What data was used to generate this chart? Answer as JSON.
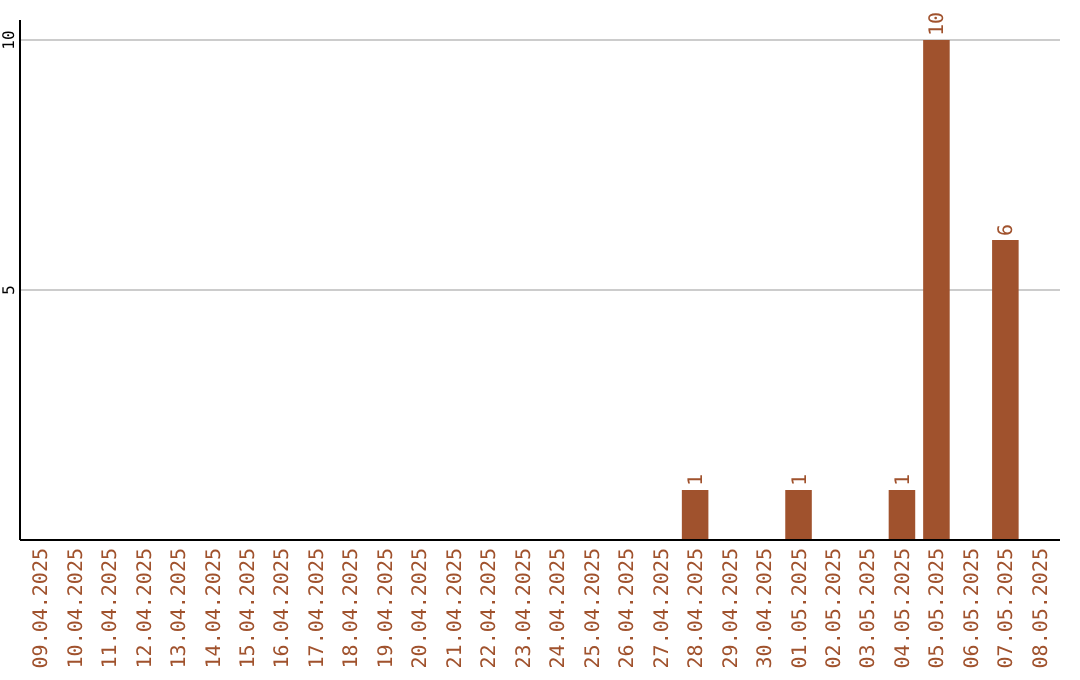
{
  "chart_data": {
    "type": "bar",
    "categories": [
      "09.04.2025",
      "10.04.2025",
      "11.04.2025",
      "12.04.2025",
      "13.04.2025",
      "14.04.2025",
      "15.04.2025",
      "16.04.2025",
      "17.04.2025",
      "18.04.2025",
      "19.04.2025",
      "20.04.2025",
      "21.04.2025",
      "22.04.2025",
      "23.04.2025",
      "24.04.2025",
      "25.04.2025",
      "26.04.2025",
      "27.04.2025",
      "28.04.2025",
      "29.04.2025",
      "30.04.2025",
      "01.05.2025",
      "02.05.2025",
      "03.05.2025",
      "04.05.2025",
      "05.05.2025",
      "06.05.2025",
      "07.05.2025",
      "08.05.2025"
    ],
    "values": [
      0,
      0,
      0,
      0,
      0,
      0,
      0,
      0,
      0,
      0,
      0,
      0,
      0,
      0,
      0,
      0,
      0,
      0,
      0,
      1,
      0,
      0,
      1,
      0,
      0,
      1,
      10,
      0,
      6,
      0
    ],
    "value_labels": [
      null,
      null,
      null,
      null,
      null,
      null,
      null,
      null,
      null,
      null,
      null,
      null,
      null,
      null,
      null,
      null,
      null,
      null,
      null,
      "1",
      null,
      null,
      "1",
      null,
      null,
      "1",
      "10",
      null,
      "6",
      null
    ],
    "color": "#a0522d",
    "ylim": [
      0,
      10.4
    ],
    "yticks": [
      5,
      10
    ],
    "grid": "y"
  }
}
